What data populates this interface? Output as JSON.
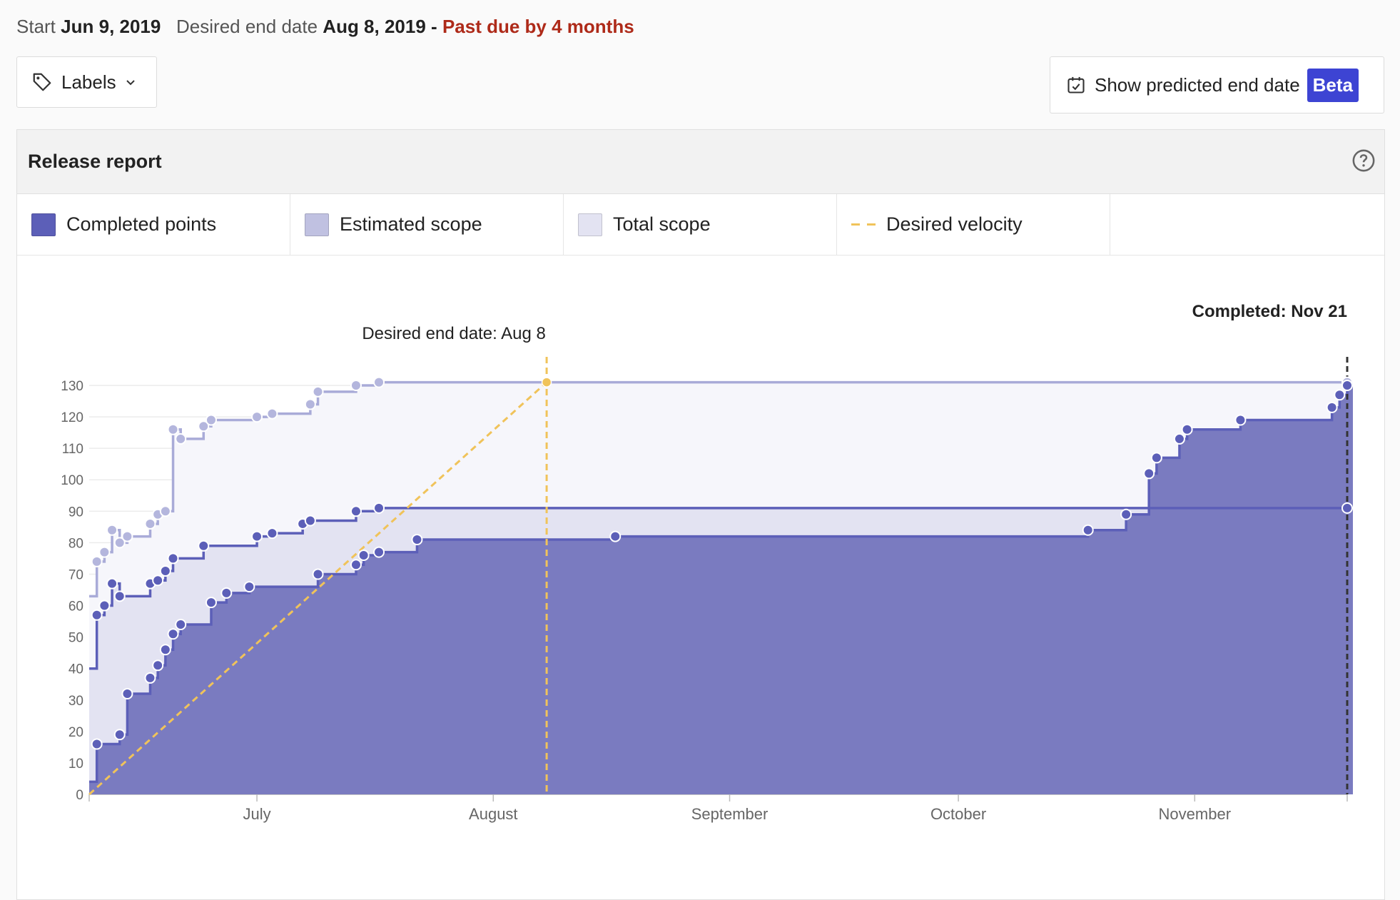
{
  "header": {
    "start_label": "Start",
    "start_date": "Jun 9, 2019",
    "end_label": "Desired end date",
    "end_date": "Aug 8, 2019",
    "separator": "-",
    "past_due": "Past due by 4 months"
  },
  "toolbar": {
    "labels_button": "Labels",
    "predict_button": "Show predicted end date",
    "beta_badge": "Beta"
  },
  "panel": {
    "title": "Release report"
  },
  "colors": {
    "completed": "#5c5fb8",
    "completed_fill": "#7a7bc0",
    "estimated": "#c0c1e1",
    "estimated_fill": "#e3e3f2",
    "total": "#a9abd8",
    "total_fill": "#f6f6fb",
    "velocity": "#f0c35a",
    "due": "#ae2a19",
    "beta": "#3d44d3"
  },
  "legend": [
    {
      "label": "Completed points",
      "color": "#5c5fb8"
    },
    {
      "label": "Estimated scope",
      "color": "#c0c1e1"
    },
    {
      "label": "Total scope",
      "color": "#e3e3f2"
    },
    {
      "label": "Desired velocity",
      "color": "#f0c35a"
    }
  ],
  "chart_data": {
    "type": "area",
    "x_unit": "date (2019)",
    "xlim": [
      "2019-06-09",
      "2019-11-21"
    ],
    "ylim": [
      0,
      130
    ],
    "yticks": [
      0,
      10,
      20,
      30,
      40,
      50,
      60,
      70,
      80,
      90,
      100,
      110,
      120,
      130
    ],
    "xticks": [
      {
        "date": "2019-07-01",
        "label": "July"
      },
      {
        "date": "2019-08-01",
        "label": "August"
      },
      {
        "date": "2019-09-01",
        "label": "September"
      },
      {
        "date": "2019-10-01",
        "label": "October"
      },
      {
        "date": "2019-11-01",
        "label": "November"
      }
    ],
    "grid": true,
    "annotations": [
      {
        "date": "2019-08-08",
        "label": "Desired end date: Aug 8",
        "style": "dashed-yellow"
      },
      {
        "date": "2019-11-21",
        "label": "Completed: Nov 21",
        "style": "dashed-black"
      }
    ],
    "series": [
      {
        "name": "Total scope",
        "type": "step-area",
        "points": [
          [
            "2019-06-09",
            63
          ],
          [
            "2019-06-10",
            74
          ],
          [
            "2019-06-11",
            77
          ],
          [
            "2019-06-12",
            84
          ],
          [
            "2019-06-13",
            80
          ],
          [
            "2019-06-14",
            82
          ],
          [
            "2019-06-17",
            86
          ],
          [
            "2019-06-18",
            89
          ],
          [
            "2019-06-19",
            90
          ],
          [
            "2019-06-20",
            116
          ],
          [
            "2019-06-21",
            113
          ],
          [
            "2019-06-24",
            117
          ],
          [
            "2019-06-25",
            119
          ],
          [
            "2019-07-01",
            120
          ],
          [
            "2019-07-03",
            121
          ],
          [
            "2019-07-08",
            124
          ],
          [
            "2019-07-09",
            128
          ],
          [
            "2019-07-14",
            130
          ],
          [
            "2019-07-17",
            131
          ],
          [
            "2019-11-21",
            131
          ]
        ]
      },
      {
        "name": "Estimated scope",
        "type": "step-area",
        "points": [
          [
            "2019-06-09",
            40
          ],
          [
            "2019-06-10",
            57
          ],
          [
            "2019-06-11",
            60
          ],
          [
            "2019-06-12",
            67
          ],
          [
            "2019-06-13",
            63
          ],
          [
            "2019-06-17",
            67
          ],
          [
            "2019-06-18",
            68
          ],
          [
            "2019-06-19",
            71
          ],
          [
            "2019-06-20",
            75
          ],
          [
            "2019-06-24",
            79
          ],
          [
            "2019-07-01",
            82
          ],
          [
            "2019-07-03",
            83
          ],
          [
            "2019-07-07",
            86
          ],
          [
            "2019-07-08",
            87
          ],
          [
            "2019-07-14",
            90
          ],
          [
            "2019-07-17",
            91
          ],
          [
            "2019-11-21",
            91
          ]
        ]
      },
      {
        "name": "Completed points",
        "type": "step-area",
        "points": [
          [
            "2019-06-09",
            4
          ],
          [
            "2019-06-10",
            16
          ],
          [
            "2019-06-13",
            19
          ],
          [
            "2019-06-14",
            32
          ],
          [
            "2019-06-17",
            37
          ],
          [
            "2019-06-18",
            41
          ],
          [
            "2019-06-19",
            46
          ],
          [
            "2019-06-20",
            51
          ],
          [
            "2019-06-21",
            54
          ],
          [
            "2019-06-25",
            61
          ],
          [
            "2019-06-27",
            64
          ],
          [
            "2019-06-30",
            66
          ],
          [
            "2019-07-09",
            70
          ],
          [
            "2019-07-14",
            73
          ],
          [
            "2019-07-15",
            76
          ],
          [
            "2019-07-17",
            77
          ],
          [
            "2019-07-22",
            81
          ],
          [
            "2019-08-17",
            82
          ],
          [
            "2019-10-18",
            84
          ],
          [
            "2019-10-23",
            89
          ],
          [
            "2019-10-26",
            102
          ],
          [
            "2019-10-27",
            107
          ],
          [
            "2019-10-30",
            113
          ],
          [
            "2019-10-31",
            116
          ],
          [
            "2019-11-07",
            119
          ],
          [
            "2019-11-19",
            123
          ],
          [
            "2019-11-20",
            127
          ],
          [
            "2019-11-21",
            130
          ]
        ]
      },
      {
        "name": "Desired velocity",
        "type": "line",
        "points": [
          [
            "2019-06-09",
            0
          ],
          [
            "2019-08-08",
            131
          ]
        ]
      }
    ]
  }
}
